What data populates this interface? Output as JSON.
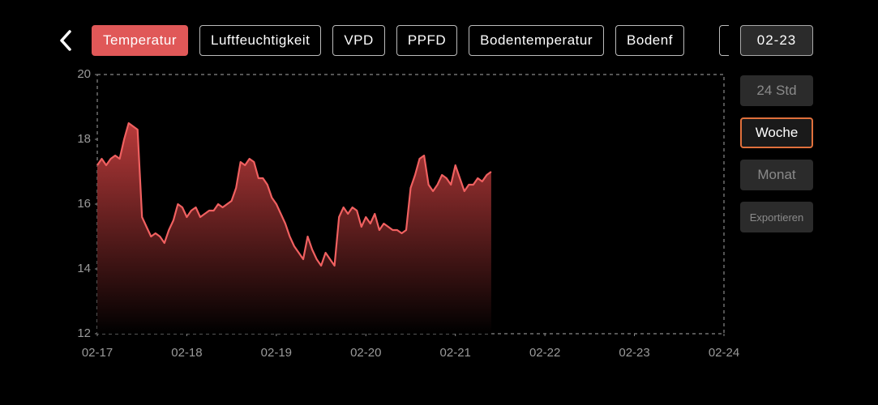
{
  "tabs": [
    "Temperatur",
    "Luftfeuchtigkeit",
    "VPD",
    "PPFD",
    "Bodentemperatur",
    "Bodenf"
  ],
  "date": "02-23",
  "range_buttons": [
    "24 Std",
    "Woche",
    "Monat"
  ],
  "export": "Exportieren",
  "chart_data": {
    "type": "area",
    "color": "#f06060",
    "x": [
      0,
      0.05,
      0.1,
      0.15,
      0.2,
      0.25,
      0.3,
      0.35,
      0.4,
      0.45,
      0.5,
      0.55,
      0.6,
      0.65,
      0.7,
      0.75,
      0.8,
      0.85,
      0.9,
      0.95,
      1,
      1.05,
      1.1,
      1.15,
      1.2,
      1.25,
      1.3,
      1.35,
      1.4,
      1.45,
      1.5,
      1.55,
      1.6,
      1.65,
      1.7,
      1.75,
      1.8,
      1.85,
      1.9,
      1.95,
      2,
      2.05,
      2.1,
      2.15,
      2.2,
      2.25,
      2.3,
      2.35,
      2.4,
      2.45,
      2.5,
      2.55,
      2.6,
      2.65,
      2.7,
      2.75,
      2.8,
      2.85,
      2.9,
      2.95,
      3,
      3.05,
      3.1,
      3.15,
      3.2,
      3.25,
      3.3,
      3.35,
      3.4,
      3.45,
      3.5,
      3.55,
      3.6,
      3.65,
      3.7,
      3.75,
      3.8,
      3.85,
      3.9,
      3.95,
      4,
      4.05,
      4.1,
      4.15,
      4.2,
      4.25,
      4.3,
      4.35,
      4.4
    ],
    "values": [
      17.2,
      17.4,
      17.2,
      17.4,
      17.5,
      17.4,
      18.0,
      18.5,
      18.4,
      18.3,
      15.6,
      15.3,
      15.0,
      15.1,
      15.0,
      14.8,
      15.2,
      15.5,
      16.0,
      15.9,
      15.6,
      15.8,
      15.9,
      15.6,
      15.7,
      15.8,
      15.8,
      16.0,
      15.9,
      16.0,
      16.1,
      16.5,
      17.3,
      17.2,
      17.4,
      17.3,
      16.8,
      16.8,
      16.6,
      16.2,
      16.0,
      15.7,
      15.4,
      15.0,
      14.7,
      14.5,
      14.3,
      15.0,
      14.6,
      14.3,
      14.1,
      14.5,
      14.3,
      14.1,
      15.6,
      15.9,
      15.7,
      15.9,
      15.8,
      15.3,
      15.6,
      15.4,
      15.7,
      15.2,
      15.4,
      15.3,
      15.2,
      15.2,
      15.1,
      15.2,
      16.5,
      16.9,
      17.4,
      17.5,
      16.6,
      16.4,
      16.6,
      16.9,
      16.8,
      16.6,
      17.2,
      16.8,
      16.4,
      16.6,
      16.6,
      16.8,
      16.7,
      16.9,
      17.0
    ],
    "xlim": [
      0,
      7
    ],
    "xticks": [
      {
        "value": 0,
        "label": "02-17"
      },
      {
        "value": 1,
        "label": "02-18"
      },
      {
        "value": 2,
        "label": "02-19"
      },
      {
        "value": 3,
        "label": "02-20"
      },
      {
        "value": 4,
        "label": "02-21"
      },
      {
        "value": 5,
        "label": "02-22"
      },
      {
        "value": 6,
        "label": "02-23"
      },
      {
        "value": 7,
        "label": "02-24"
      }
    ],
    "ylim": [
      12,
      20
    ],
    "yticks": [
      12,
      14,
      16,
      18,
      20
    ]
  }
}
